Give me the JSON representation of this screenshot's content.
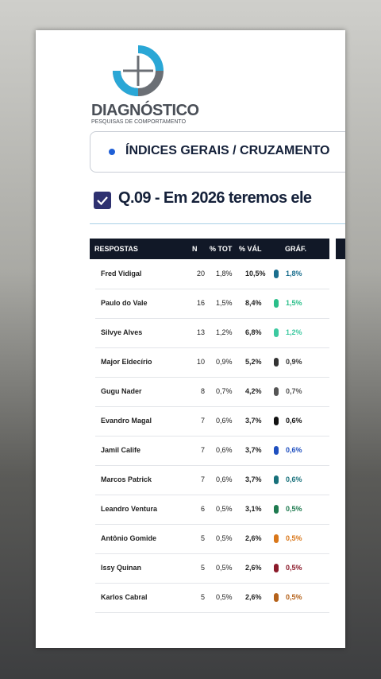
{
  "logo": {
    "name": "DIAGNÓSTICO",
    "tagline": "PESQUISAS DE COMPORTAMENTO"
  },
  "section": "ÍNDICES GERAIS / CRUZAMENTO",
  "question": "Q.09 - Em 2026 teremos ele",
  "table": {
    "headers": [
      "RESPOSTAS",
      "N",
      "% TOT",
      "% VÁL",
      "GRÁF."
    ],
    "rows": [
      {
        "name": "Fred Vidigal",
        "n": "20",
        "tot": "1,8%",
        "val": "10,5%",
        "graf": "1,8%",
        "color": "#1a6e8e"
      },
      {
        "name": "Paulo do Vale",
        "n": "16",
        "tot": "1,5%",
        "val": "8,4%",
        "graf": "1,5%",
        "color": "#2bbf8a"
      },
      {
        "name": "Silvye Alves",
        "n": "13",
        "tot": "1,2%",
        "val": "6,8%",
        "graf": "1,2%",
        "color": "#3cc9a0"
      },
      {
        "name": "Major Eldecírio",
        "n": "10",
        "tot": "0,9%",
        "val": "5,2%",
        "graf": "0,9%",
        "color": "#333333"
      },
      {
        "name": "Gugu Nader",
        "n": "8",
        "tot": "0,7%",
        "val": "4,2%",
        "graf": "0,7%",
        "color": "#555555"
      },
      {
        "name": "Evandro Magal",
        "n": "7",
        "tot": "0,6%",
        "val": "3,7%",
        "graf": "0,6%",
        "color": "#111111"
      },
      {
        "name": "Jamil Calife",
        "n": "7",
        "tot": "0,6%",
        "val": "3,7%",
        "graf": "0,6%",
        "color": "#1f4fbf"
      },
      {
        "name": "Marcos Patrick",
        "n": "7",
        "tot": "0,6%",
        "val": "3,7%",
        "graf": "0,6%",
        "color": "#17707a"
      },
      {
        "name": "Leandro Ventura",
        "n": "6",
        "tot": "0,5%",
        "val": "3,1%",
        "graf": "0,5%",
        "color": "#1e7a4f"
      },
      {
        "name": "Antônio Gomide",
        "n": "5",
        "tot": "0,5%",
        "val": "2,6%",
        "graf": "0,5%",
        "color": "#d9771a"
      },
      {
        "name": "Issy Quinan",
        "n": "5",
        "tot": "0,5%",
        "val": "2,6%",
        "graf": "0,5%",
        "color": "#8b1a2a"
      },
      {
        "name": "Karlos Cabral",
        "n": "5",
        "tot": "0,5%",
        "val": "2,6%",
        "graf": "0,5%",
        "color": "#b5621a"
      }
    ]
  }
}
